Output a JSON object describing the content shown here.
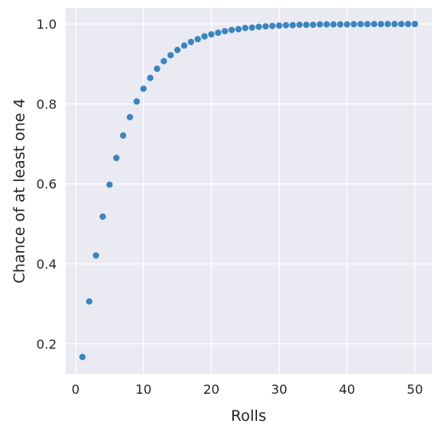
{
  "chart_data": {
    "type": "scatter",
    "xlabel": "Rolls",
    "ylabel": "Chance of at least one 4",
    "xlim": [
      -1.5,
      52.5
    ],
    "ylim": [
      0.125,
      1.04
    ],
    "xticks": [
      0,
      10,
      20,
      30,
      40,
      50
    ],
    "xtick_labels": [
      "0",
      "10",
      "20",
      "30",
      "40",
      "50"
    ],
    "yticks": [
      0.2,
      0.4,
      0.6,
      0.8,
      1.0
    ],
    "ytick_labels": [
      "0.2",
      "0.4",
      "0.6",
      "0.8",
      "1.0"
    ],
    "grid": true,
    "colors": {
      "background": "#eaeaf2",
      "grid": "#ffffff",
      "point": "#3a85bf"
    },
    "series": [
      {
        "x": [
          1,
          2,
          3,
          4,
          5,
          6,
          7,
          8,
          9,
          10,
          11,
          12,
          13,
          14,
          15,
          16,
          17,
          18,
          19,
          20,
          21,
          22,
          23,
          24,
          25,
          26,
          27,
          28,
          29,
          30,
          31,
          32,
          33,
          34,
          35,
          36,
          37,
          38,
          39,
          40,
          41,
          42,
          43,
          44,
          45,
          46,
          47,
          48,
          49,
          50
        ],
        "y": [
          0.167,
          0.306,
          0.421,
          0.518,
          0.598,
          0.665,
          0.721,
          0.767,
          0.806,
          0.838,
          0.865,
          0.888,
          0.907,
          0.922,
          0.935,
          0.946,
          0.955,
          0.962,
          0.969,
          0.974,
          0.978,
          0.982,
          0.985,
          0.987,
          0.99,
          0.991,
          0.993,
          0.994,
          0.995,
          0.996,
          0.997,
          0.997,
          0.998,
          0.998,
          0.998,
          0.999,
          0.999,
          0.999,
          0.999,
          0.999,
          0.9994,
          0.9995,
          0.9996,
          0.9997,
          0.9997,
          0.9998,
          0.9998,
          0.9998,
          0.9999,
          0.9999
        ]
      }
    ]
  }
}
